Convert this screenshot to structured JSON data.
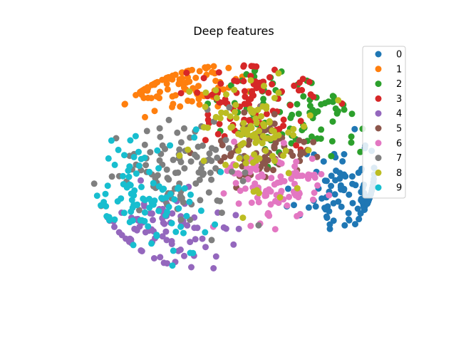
{
  "chart_data": {
    "type": "scatter",
    "title": "Deep features",
    "xlabel": "",
    "ylabel": "",
    "axes_visible": false,
    "grid": false,
    "legend_placement": "top-right",
    "xlim": [
      -40,
      40
    ],
    "ylim": [
      -40,
      40
    ],
    "series": [
      {
        "name": "0",
        "color": "#1f77b4",
        "cluster": {
          "cx": 28,
          "cy": -6,
          "sx": 6,
          "sy": 7,
          "n": 100,
          "seed": 11
        }
      },
      {
        "name": "1",
        "color": "#ff7f0e",
        "cluster": {
          "cx": -14,
          "cy": 27,
          "sx": 7,
          "sy": 4,
          "n": 95,
          "seed": 23
        }
      },
      {
        "name": "2",
        "color": "#2ca02c",
        "cluster": {
          "cx": 15,
          "cy": 18,
          "sx": 9,
          "sy": 7,
          "n": 90,
          "seed": 37
        }
      },
      {
        "name": "3",
        "color": "#d62728",
        "cluster": {
          "cx": 6,
          "cy": 22,
          "sx": 8,
          "sy": 6,
          "n": 95,
          "seed": 41
        }
      },
      {
        "name": "4",
        "color": "#9467bd",
        "cluster": {
          "cx": -17,
          "cy": -18,
          "sx": 9,
          "sy": 6,
          "n": 85,
          "seed": 53
        }
      },
      {
        "name": "5",
        "color": "#8c564b",
        "cluster": {
          "cx": 7,
          "cy": 5,
          "sx": 6,
          "sy": 5,
          "n": 75,
          "seed": 67
        }
      },
      {
        "name": "6",
        "color": "#e377c2",
        "cluster": {
          "cx": 10,
          "cy": -5,
          "sx": 7,
          "sy": 6,
          "n": 95,
          "seed": 71
        }
      },
      {
        "name": "7",
        "color": "#7f7f7f",
        "cluster": {
          "cx": -13,
          "cy": 0,
          "sx": 8,
          "sy": 8,
          "n": 110,
          "seed": 83
        }
      },
      {
        "name": "8",
        "color": "#bcbd22",
        "cluster": {
          "cx": 3,
          "cy": 12,
          "sx": 8,
          "sy": 9,
          "n": 100,
          "seed": 97
        }
      },
      {
        "name": "9",
        "color": "#17becf",
        "cluster": {
          "cx": -21,
          "cy": -8,
          "sx": 7,
          "sy": 9,
          "n": 100,
          "seed": 101
        }
      }
    ]
  }
}
